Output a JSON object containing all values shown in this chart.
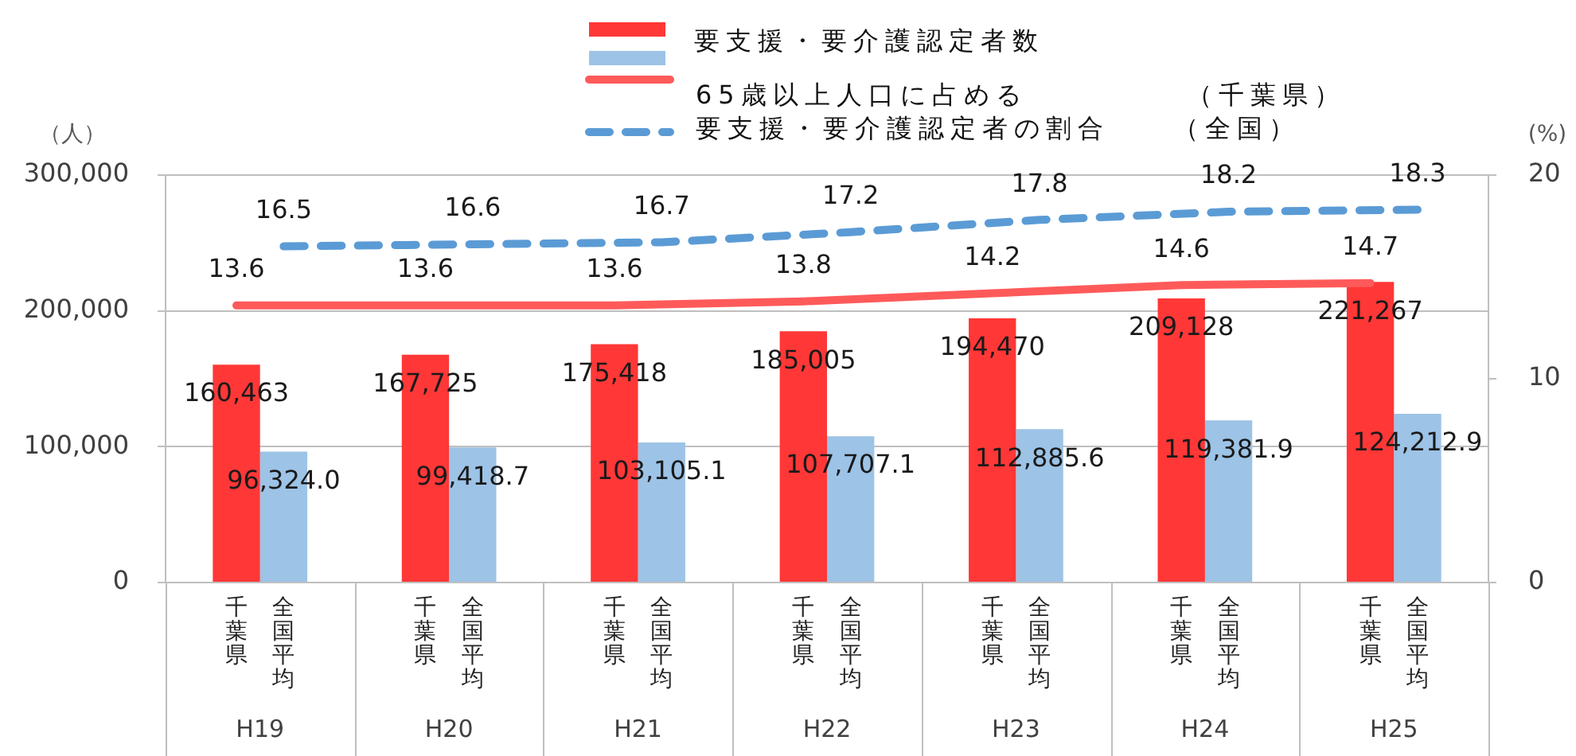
{
  "chart_data": {
    "type": "bar",
    "ylabel": "（人）",
    "y2label": "(%)",
    "categories": [
      "H19",
      "H20",
      "H21",
      "H22",
      "H23",
      "H24",
      "H25"
    ],
    "series": [
      {
        "name": "千葉県",
        "color": "#ff3737",
        "values": [
          160463,
          167725,
          175418,
          185005,
          194470,
          209128,
          221267
        ],
        "value_labels": [
          "160,463",
          "167,725",
          "175,418",
          "185,005",
          "194,470",
          "209,128",
          "221,267"
        ]
      },
      {
        "name": "全国平均",
        "color": "#9dc3e6",
        "values": [
          96324.0,
          99418.7,
          103105.1,
          107707.1,
          112885.6,
          119381.9,
          124212.9
        ],
        "value_labels": [
          "96,324.0",
          "99,418.7",
          "103,105.1",
          "107,707.1",
          "112,885.6",
          "119,381.9",
          "124,212.9"
        ]
      },
      {
        "name": "65歳以上人口に占める　　　　　（千葉県）",
        "type": "line",
        "axis": "y2",
        "line_style": "solid",
        "color": "#ff5a5a",
        "values": [
          13.6,
          13.6,
          13.6,
          13.8,
          14.2,
          14.6,
          14.7
        ],
        "value_labels": [
          "13.6",
          "13.6",
          "13.6",
          "13.8",
          "14.2",
          "14.6",
          "14.7"
        ]
      },
      {
        "name": "要支援・要介護認定者の割合　　（全国）",
        "type": "line",
        "axis": "y2",
        "line_style": "dashed",
        "color": "#5b9bd5",
        "values": [
          16.5,
          16.6,
          16.7,
          17.2,
          17.8,
          18.2,
          18.3
        ],
        "value_labels": [
          "16.5",
          "16.6",
          "16.7",
          "17.2",
          "17.8",
          "18.2",
          "18.3"
        ]
      }
    ],
    "ylim": [
      0,
      300000
    ],
    "yticks": [
      0,
      {
        "value": 100000,
        "label": "100,000"
      },
      {
        "value": 200000,
        "label": "200,000"
      },
      {
        "value": 300000,
        "label": "300,000"
      }
    ],
    "y2lim": [
      0,
      20
    ],
    "y2ticks": [
      0,
      10,
      20
    ],
    "grid": "y",
    "legend": "top",
    "marker": "none",
    "annotations": [
      "要支援・要介護認定者数"
    ]
  }
}
